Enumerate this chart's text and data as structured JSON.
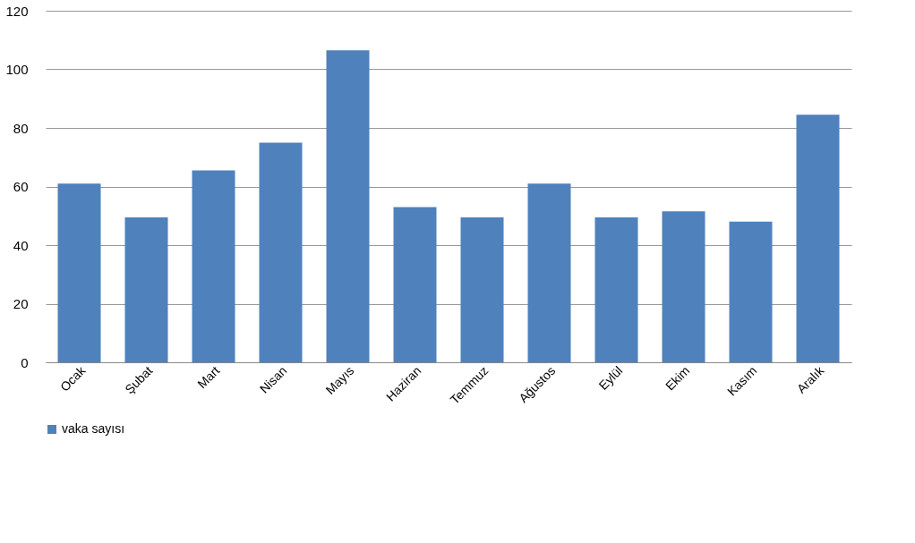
{
  "chart_data": {
    "type": "bar",
    "categories": [
      "Ocak",
      "Şubat",
      "Mart",
      "Nisan",
      "Mayıs",
      "Haziran",
      "Temmuz",
      "Ağustos",
      "Eylül",
      "Ekim",
      "Kasım",
      "Aralık"
    ],
    "series": [
      {
        "name": "vaka sayısı",
        "color": "#4f81bd",
        "values": [
          61,
          49.5,
          65.5,
          75,
          106.5,
          53,
          49.5,
          61,
          49.5,
          51.5,
          48,
          84.5
        ]
      }
    ],
    "ylim": [
      0,
      120
    ],
    "yticks": [
      0,
      20,
      40,
      60,
      80,
      100,
      120
    ],
    "grid": "y",
    "legend": "bottom"
  }
}
